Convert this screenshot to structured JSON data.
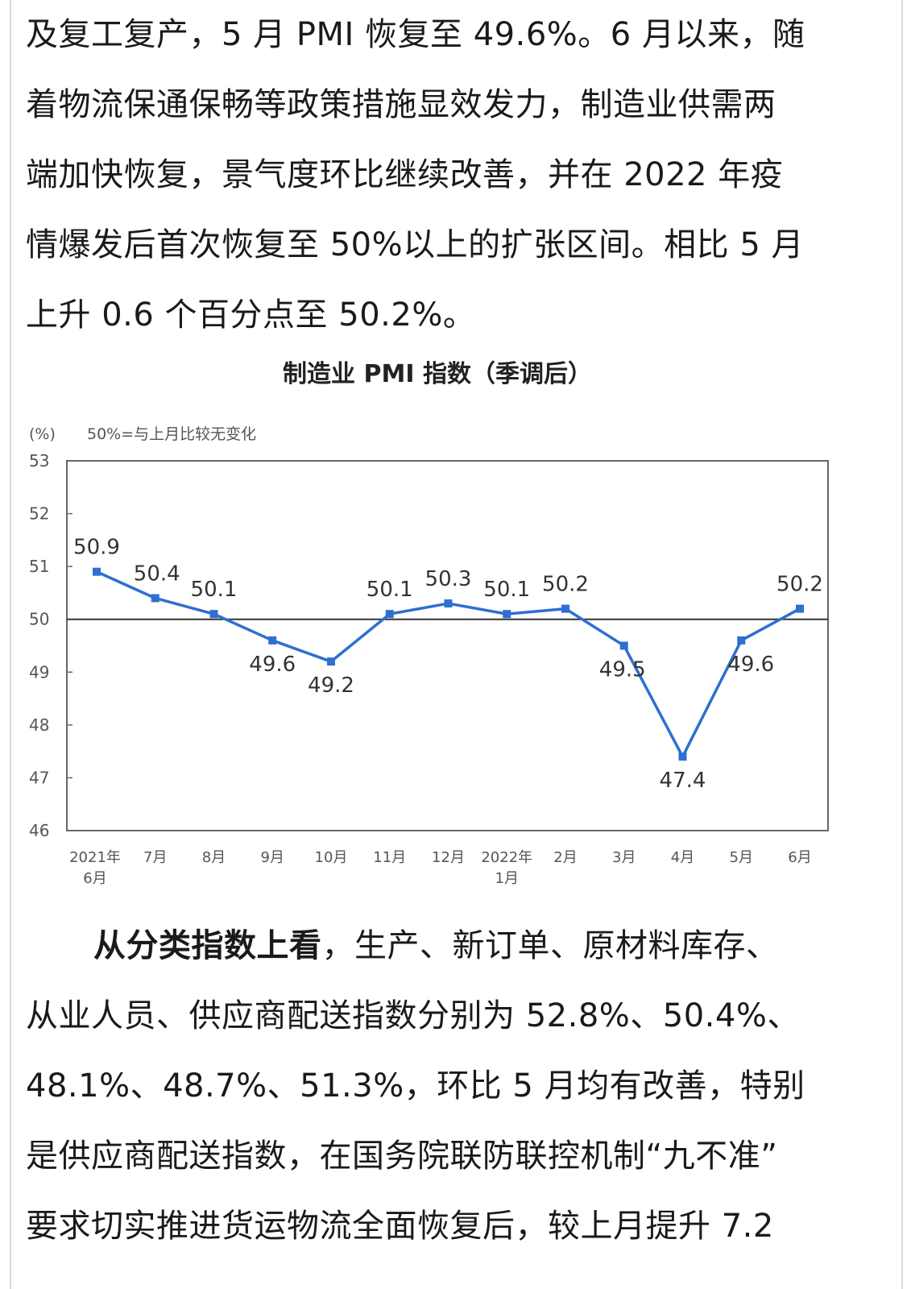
{
  "paragraph_1": {
    "lines": [
      "及复工复产，5 月 PMI 恢复至 49.6%。6 月以来，随",
      "着物流保通保畅等政策措施显效发力，制造业供需两",
      "端加快恢复，景气度环比继续改善，并在 2022 年疫",
      "情爆发后首次恢复至 50%以上的扩张区间。相比 5 月",
      "上升 0.6 个百分点至 50.2%。"
    ]
  },
  "chart_data": {
    "type": "line",
    "title": "制造业 PMI 指数（季调后）",
    "ylabel": "(%)",
    "annotation": "50%=与上月比较无变化",
    "ylim": [
      46,
      53
    ],
    "yticks": [
      "53",
      "52",
      "51",
      "50",
      "49",
      "48",
      "47",
      "46"
    ],
    "reference_line": 50,
    "categories": [
      [
        "2021年",
        "6月"
      ],
      [
        "7月"
      ],
      [
        "8月"
      ],
      [
        "9月"
      ],
      [
        "10月"
      ],
      [
        "11月"
      ],
      [
        "12月"
      ],
      [
        "2022年",
        "1月"
      ],
      [
        "2月"
      ],
      [
        "3月"
      ],
      [
        "4月"
      ],
      [
        "5月"
      ],
      [
        "6月"
      ]
    ],
    "values": [
      50.9,
      50.4,
      50.1,
      49.6,
      49.2,
      50.1,
      50.3,
      50.1,
      50.2,
      49.5,
      47.4,
      49.6,
      50.2
    ],
    "data_labels": [
      "50.9",
      "50.4",
      "50.1",
      "49.6",
      "49.2",
      "50.1",
      "50.3",
      "50.1",
      "50.2",
      "49.5",
      "47.4",
      "49.6",
      "50.2"
    ],
    "series_color": "#2e6fd1",
    "grid": false,
    "legend": "none"
  },
  "paragraph_2": {
    "line1_bold": "从分类指数上看",
    "line1_rest": "，生产、新订单、原材料库存、",
    "lines": [
      "从业人员、供应商配送指数分别为 52.8%、50.4%、",
      "48.1%、48.7%、51.3%，环比 5 月均有改善，特别",
      "是供应商配送指数，在国务院联防联控机制“九不准”",
      "要求切实推进货运物流全面恢复后，较上月提升 7.2"
    ]
  }
}
